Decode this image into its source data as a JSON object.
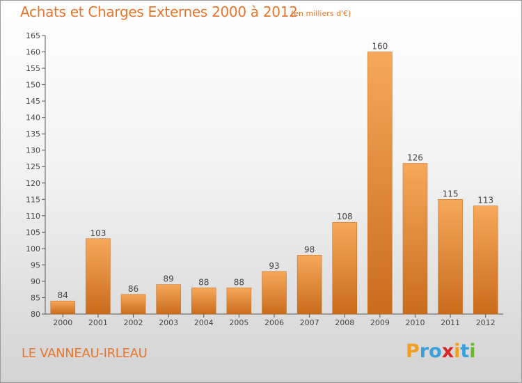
{
  "title": "Achats et Charges Externes 2000 à 2012",
  "subtitle": "(en milliers d'€)",
  "commune": "LE VANNEAU-IRLEAU",
  "logo": {
    "letters": [
      "P",
      "r",
      "o",
      "x",
      "i",
      "t",
      "i"
    ],
    "colors": [
      "#f0a020",
      "#3aa0dc",
      "#3aa0dc",
      "#d8262a",
      "#f0a020",
      "#3aa0dc",
      "#68b82e"
    ]
  },
  "colors": {
    "accent": "#e8752d",
    "bar_light": "#f7a85a",
    "bar_dark": "#c96c1c"
  },
  "chart_data": {
    "type": "bar",
    "categories": [
      "2000",
      "2001",
      "2002",
      "2003",
      "2004",
      "2005",
      "2006",
      "2007",
      "2008",
      "2009",
      "2010",
      "2011",
      "2012"
    ],
    "values": [
      84,
      103,
      86,
      89,
      88,
      88,
      93,
      98,
      108,
      160,
      126,
      115,
      113
    ],
    "title": "Achats et Charges Externes 2000 à 2012",
    "xlabel": "",
    "ylabel": "",
    "ylim": [
      80,
      165
    ],
    "yticks": [
      80,
      85,
      90,
      95,
      100,
      105,
      110,
      115,
      120,
      125,
      130,
      135,
      140,
      145,
      150,
      155,
      160,
      165
    ],
    "grid": false,
    "data_labels": true
  }
}
